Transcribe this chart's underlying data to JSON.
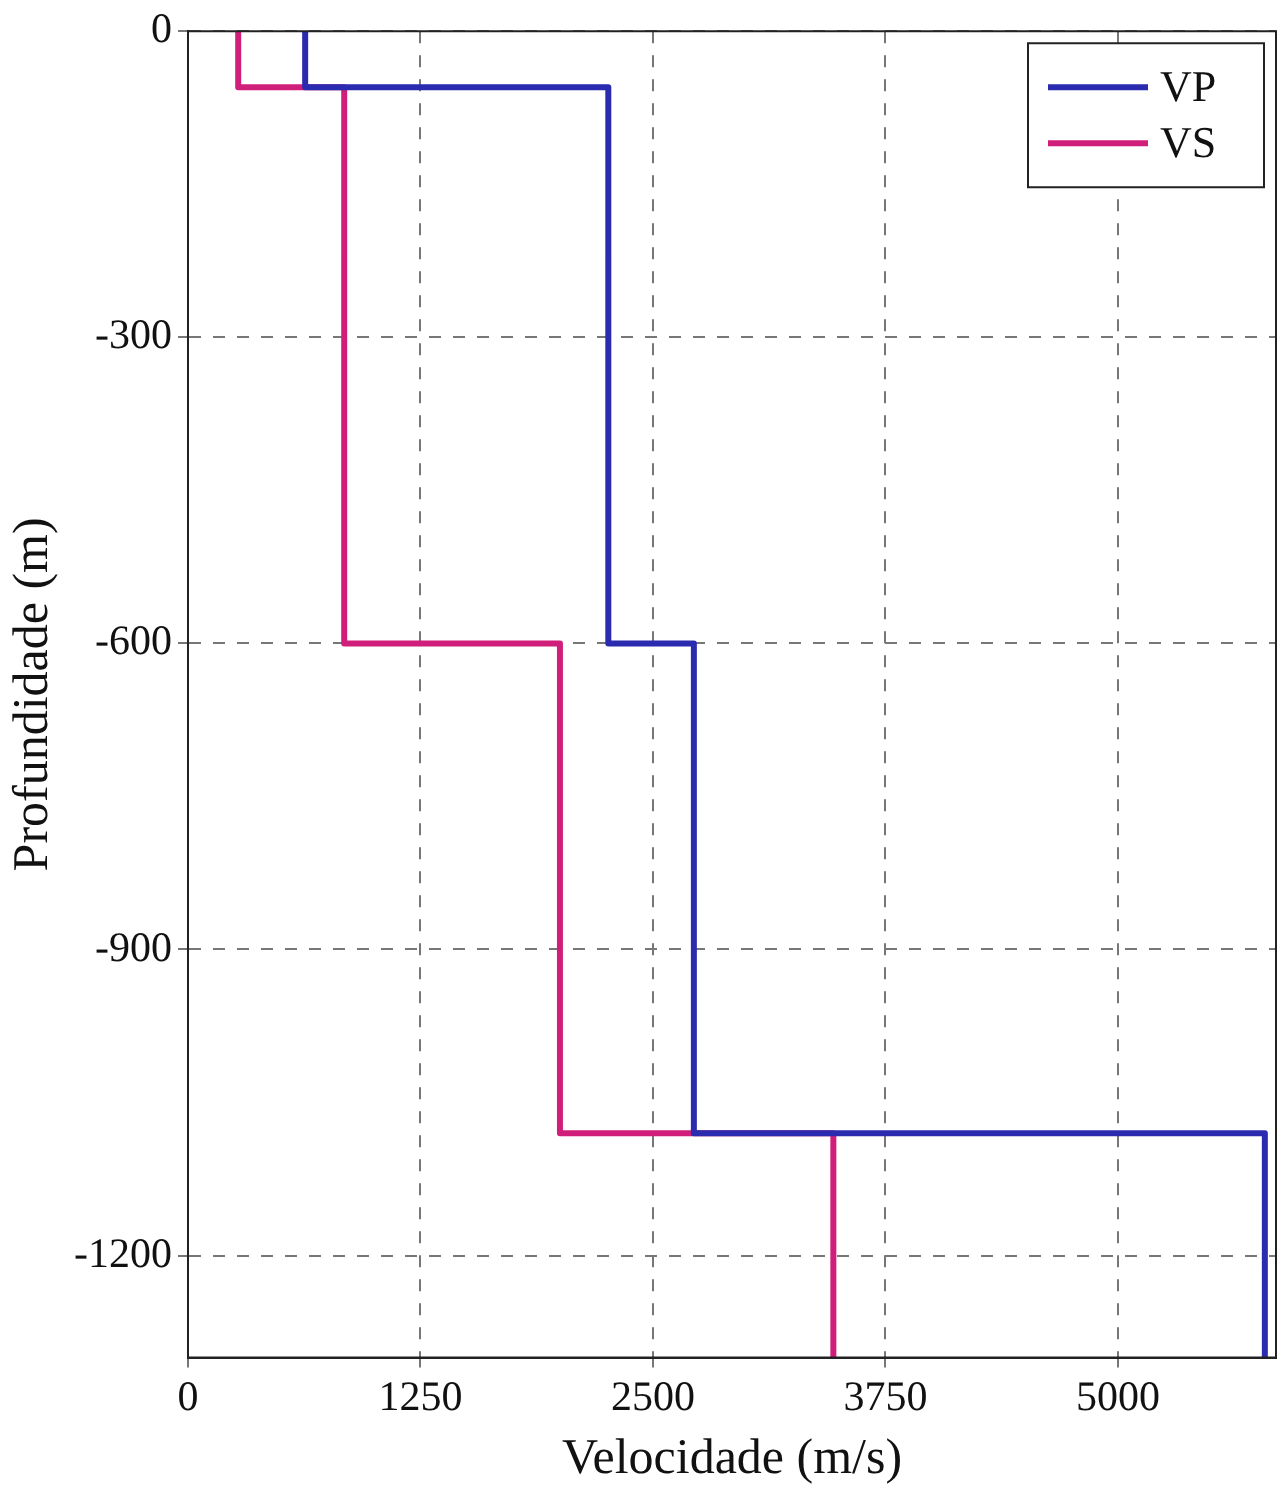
{
  "chart_data": {
    "type": "line",
    "xlabel": "Velocidade (m/s)",
    "ylabel": "Profundidade (m)",
    "xlim": [
      0,
      5850
    ],
    "xticks": [
      0,
      1250,
      2500,
      3750,
      5000
    ],
    "ylim": [
      -1300,
      0
    ],
    "yticks": [
      -1200,
      -900,
      -600,
      -300,
      0
    ],
    "grid": true,
    "line_style": "solid",
    "marker": "none",
    "legend": "top right",
    "series": [
      {
        "name": "VP",
        "color": "#2b2bb0",
        "x": [
          630,
          630,
          2260,
          2260,
          2720,
          2720,
          5790,
          5790
        ],
        "values": [
          0,
          -55,
          -55,
          -600,
          -600,
          -1080,
          -1080,
          -1300
        ]
      },
      {
        "name": "VS",
        "color": "#d01f7a",
        "x": [
          270,
          270,
          840,
          840,
          2000,
          2000,
          3470,
          3470
        ],
        "values": [
          0,
          -55,
          -55,
          -600,
          -600,
          -1080,
          -1080,
          -1300
        ]
      }
    ]
  }
}
